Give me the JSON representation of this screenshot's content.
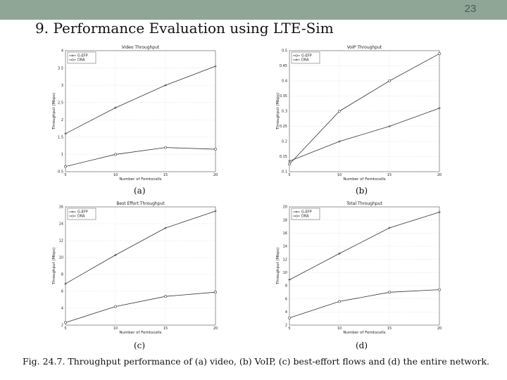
{
  "slide": {
    "number": "23",
    "title": "9. Performance Evaluation using LTE-Sim",
    "caption": "Fig. 24.7. Throughput performance of (a) video, (b) VoIP, (c) best-effort flows and (d) the entire network."
  },
  "colors": {
    "topbar": "#8fa596",
    "line": "#333333"
  },
  "chart_data": [
    {
      "type": "line",
      "panel_label": "(a)",
      "title": "Video Throughput",
      "xlabel": "Number of Femtocells",
      "ylabel": "Throughput (Mbps)",
      "x": [
        5,
        10,
        15,
        20
      ],
      "xlim": [
        5,
        20
      ],
      "ylim": [
        0.5,
        4
      ],
      "xticks": [
        "5",
        "10",
        "15",
        "20"
      ],
      "yticks": [
        "0.5",
        "1",
        "1.5",
        "2",
        "2.5",
        "3",
        "3.5",
        "4"
      ],
      "ytick_values": [
        0.5,
        1,
        1.5,
        2,
        2.5,
        3,
        3.5,
        4
      ],
      "grid": true,
      "legend": "top-left",
      "series": [
        {
          "name": "G-EFP",
          "marker": "plus",
          "values": [
            1.6,
            2.35,
            3.0,
            3.55
          ]
        },
        {
          "name": "DRA",
          "marker": "circle",
          "values": [
            0.65,
            1.0,
            1.2,
            1.15
          ]
        }
      ]
    },
    {
      "type": "line",
      "panel_label": "(b)",
      "title": "VoIP Throughput",
      "xlabel": "Number of Femtocells",
      "ylabel": "Throughput (Mbps)",
      "x": [
        5,
        10,
        15,
        20
      ],
      "xlim": [
        5,
        20
      ],
      "ylim": [
        0.1,
        0.5
      ],
      "xticks": [
        "5",
        "10",
        "15",
        "20"
      ],
      "yticks": [
        "0.1",
        "0.15",
        "0.2",
        "0.25",
        "0.3",
        "0.35",
        "0.4",
        "0.45",
        "0.5"
      ],
      "ytick_values": [
        0.1,
        0.15,
        0.2,
        0.25,
        0.3,
        0.35,
        0.4,
        0.45,
        0.5
      ],
      "grid": true,
      "legend": "top-left",
      "series": [
        {
          "name": "G-EFP",
          "marker": "circle",
          "values": [
            0.125,
            0.3,
            0.4,
            0.49
          ]
        },
        {
          "name": "DRA",
          "marker": "plus",
          "values": [
            0.135,
            0.2,
            0.25,
            0.31
          ]
        }
      ]
    },
    {
      "type": "line",
      "panel_label": "(c)",
      "title": "Best Effort Throughput",
      "xlabel": "Number of Femtocells",
      "ylabel": "Throughput (Mbps)",
      "x": [
        5,
        10,
        15,
        20
      ],
      "xlim": [
        5,
        20
      ],
      "ylim": [
        2,
        16
      ],
      "xticks": [
        "5",
        "10",
        "15",
        "20"
      ],
      "yticks": [
        "2",
        "4",
        "6",
        "8",
        "10",
        "12",
        "14",
        "16"
      ],
      "ytick_values": [
        2,
        4,
        6,
        8,
        10,
        12,
        14,
        16
      ],
      "grid": true,
      "legend": "top-left",
      "series": [
        {
          "name": "G-EFP",
          "marker": "plus",
          "values": [
            6.9,
            10.3,
            13.5,
            15.5
          ]
        },
        {
          "name": "DRA",
          "marker": "circle",
          "values": [
            2.3,
            4.2,
            5.4,
            5.9
          ]
        }
      ]
    },
    {
      "type": "line",
      "panel_label": "(d)",
      "title": "Total Throughput",
      "xlabel": "Number of Femtocells",
      "ylabel": "Throughput (Mbps)",
      "x": [
        5,
        10,
        15,
        20
      ],
      "xlim": [
        5,
        20
      ],
      "ylim": [
        2,
        20
      ],
      "xticks": [
        "5",
        "10",
        "15",
        "20"
      ],
      "yticks": [
        "2",
        "4",
        "6",
        "8",
        "10",
        "12",
        "14",
        "16",
        "18",
        "20"
      ],
      "ytick_values": [
        2,
        4,
        6,
        8,
        10,
        12,
        14,
        16,
        18,
        20
      ],
      "grid": true,
      "legend": "top-left",
      "series": [
        {
          "name": "G-EFP",
          "marker": "plus",
          "values": [
            8.9,
            12.9,
            16.8,
            19.2
          ]
        },
        {
          "name": "DRA",
          "marker": "circle",
          "values": [
            3.1,
            5.6,
            7.0,
            7.4
          ]
        }
      ]
    }
  ]
}
